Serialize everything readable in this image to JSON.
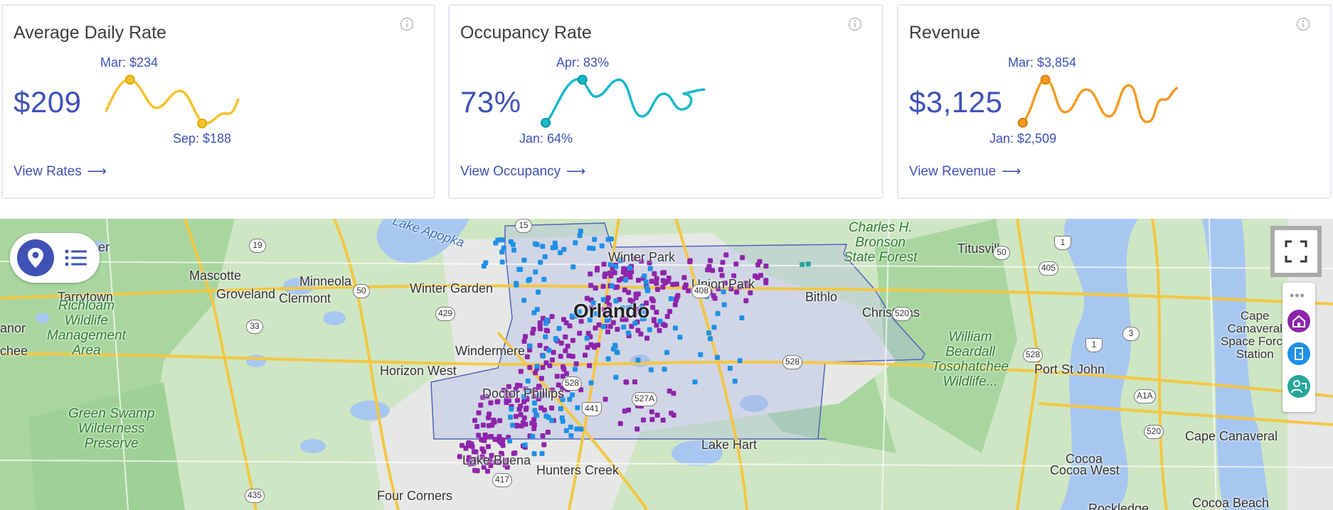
{
  "cards": [
    {
      "title": "Average Daily Rate",
      "value": "$209",
      "peak_label": "Mar: $234",
      "low_label": "Sep: $188",
      "link": "View Rates",
      "color": "#f6c12a"
    },
    {
      "title": "Occupancy Rate",
      "value": "73%",
      "peak_label": "Apr: 83%",
      "low_label": "Jan: 64%",
      "link": "View Occupancy",
      "color": "#17b9c9"
    },
    {
      "title": "Revenue",
      "value": "$3,125",
      "peak_label": "Mar: $3,854",
      "low_label": "Jan: $2,509",
      "link": "View Revenue",
      "color": "#f59b22"
    }
  ],
  "icons": {
    "info": "info-icon",
    "arrow": "arrow-right-icon",
    "pin": "location-pin-icon",
    "list": "list-icon",
    "fullscreen": "fullscreen-icon",
    "more": "more-dots-icon",
    "home": "home-icon",
    "door": "door-icon",
    "host": "host-icon"
  },
  "map": {
    "places": {
      "lake_apopka": "Lake Apopka",
      "winter_park": "Winter Park",
      "mascotte": "Mascotte",
      "minneola": "Minneola",
      "winter_garden": "Winter Garden",
      "union_park": "Union Park",
      "bithlo": "Bithlo",
      "tarrytown": "Tarrytown",
      "groveland": "Groveland",
      "clermont": "Clermont",
      "orlando": "Orlando",
      "christmas": "Christmas",
      "windermere": "Windermere",
      "horizon_west": "Horizon West",
      "doctor_phillips": "Doctor Phillips",
      "lake_hart": "Lake Hart",
      "hunters_creek": "Hunters Creek",
      "four_corners": "Four Corners",
      "lake_buena": "Lake Buena",
      "titusville": "Titusville",
      "port_st_john": "Port St John",
      "cocoa": "Cocoa",
      "cocoa_west": "Cocoa West",
      "cape_canaveral": "Cape Canaveral",
      "cocoa_beach": "Cocoa Beach",
      "rockledge": "Rockledge",
      "anor": "anor",
      "chee": "chee",
      "er": "er",
      "cape_station_1": "Cape",
      "cape_station_2": "Canaveral",
      "cape_station_3": "Space Force",
      "cape_station_4": "Station"
    },
    "parks": {
      "richloam_1": "Richloam",
      "richloam_2": "Wildlife",
      "richloam_3": "Management",
      "richloam_4": "Area",
      "green_swamp_1": "Green Swamp",
      "green_swamp_2": "Wilderness",
      "green_swamp_3": "Preserve",
      "bronson_1": "Charles H.",
      "bronson_2": "Bronson",
      "bronson_3": "State Forest",
      "beardall_1": "William",
      "beardall_2": "Beardall",
      "beardall_3": "Tosohatchee",
      "beardall_4": "Wildlife..."
    },
    "shields": [
      "19",
      "50",
      "429",
      "33",
      "408",
      "528",
      "528",
      "527A",
      "441",
      "417",
      "15",
      "50",
      "405",
      "1",
      "520",
      "1",
      "528",
      "3",
      "A1A",
      "520",
      "435"
    ],
    "marker_colors": {
      "rentals": "#8e24aa",
      "hotels": "#1e90e6",
      "other": "#26a69a"
    }
  }
}
